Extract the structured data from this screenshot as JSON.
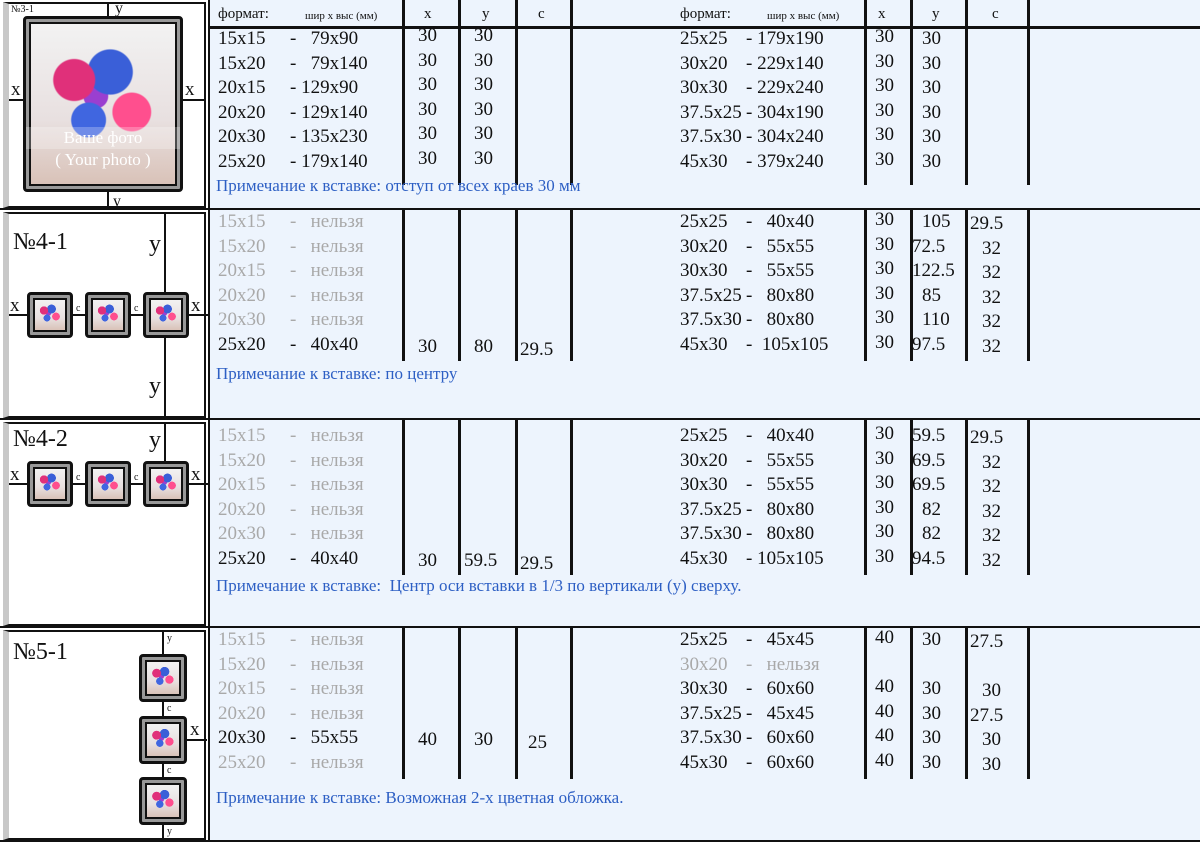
{
  "header": {
    "format": "формат:",
    "dims": "шир х выс (мм)",
    "x": "x",
    "y": "y",
    "c": "c"
  },
  "sections": [
    {
      "id": "№3-1",
      "left_rows": [
        {
          "fmt": "15x15",
          "size": "-   79x90",
          "x": "30",
          "y": "30",
          "c": "",
          "enabled": true
        },
        {
          "fmt": "15x20",
          "size": "-   79x140",
          "x": "30",
          "y": "30",
          "c": "",
          "enabled": true
        },
        {
          "fmt": "20x15",
          "size": "- 129x90",
          "x": "30",
          "y": "30",
          "c": "",
          "enabled": true
        },
        {
          "fmt": "20x20",
          "size": "- 129x140",
          "x": "30",
          "y": "30",
          "c": "",
          "enabled": true
        },
        {
          "fmt": "20x30",
          "size": "- 135x230",
          "x": "30",
          "y": "30",
          "c": "",
          "enabled": true
        },
        {
          "fmt": "25x20",
          "size": "- 179x140",
          "x": "30",
          "y": "30",
          "c": "",
          "enabled": true
        }
      ],
      "right_rows": [
        {
          "fmt": "25x25",
          "size": "- 179x190",
          "x": "30",
          "y": "30",
          "c": "",
          "enabled": true
        },
        {
          "fmt": "30x20",
          "size": "- 229x140",
          "x": "30",
          "y": "30",
          "c": "",
          "enabled": true
        },
        {
          "fmt": "30x30",
          "size": "- 229x240",
          "x": "30",
          "y": "30",
          "c": "",
          "enabled": true
        },
        {
          "fmt": "37.5x25",
          "size": "- 304x190",
          "x": "30",
          "y": "30",
          "c": "",
          "enabled": true
        },
        {
          "fmt": "37.5x30",
          "size": "- 304x240",
          "x": "30",
          "y": "30",
          "c": "",
          "enabled": true
        },
        {
          "fmt": "45x30",
          "size": "- 379x240",
          "x": "30",
          "y": "30",
          "c": "",
          "enabled": true
        }
      ],
      "note": "Примечание к вставке: отступ от всех краев 30 мм",
      "photo_caption": [
        "Ваше фото",
        "( Your photo )"
      ],
      "diagram_labels": {
        "x": "x",
        "y": "y",
        "c": "c"
      }
    },
    {
      "id": "№4-1",
      "left_rows": [
        {
          "fmt": "15x15",
          "size": "-   нельзя",
          "x": "",
          "y": "",
          "c": "",
          "enabled": false
        },
        {
          "fmt": "15x20",
          "size": "-   нельзя",
          "x": "",
          "y": "",
          "c": "",
          "enabled": false
        },
        {
          "fmt": "20x15",
          "size": "-   нельзя",
          "x": "",
          "y": "",
          "c": "",
          "enabled": false
        },
        {
          "fmt": "20x20",
          "size": "-   нельзя",
          "x": "",
          "y": "",
          "c": "",
          "enabled": false
        },
        {
          "fmt": "20x30",
          "size": "-   нельзя",
          "x": "",
          "y": "",
          "c": "",
          "enabled": false
        },
        {
          "fmt": "25x20",
          "size": "-   40x40",
          "x": "30",
          "y": "80",
          "c": "29.5",
          "enabled": true
        }
      ],
      "right_rows": [
        {
          "fmt": "25x25",
          "size": "-   40x40",
          "x": "30",
          "y": "105",
          "c": "29.5",
          "enabled": true
        },
        {
          "fmt": "30x20",
          "size": "-   55x55",
          "x": "30",
          "y": "72.5",
          "c": "32",
          "enabled": true
        },
        {
          "fmt": "30x30",
          "size": "-   55x55",
          "x": "30",
          "y": "122.5",
          "c": "32",
          "enabled": true
        },
        {
          "fmt": "37.5x25",
          "size": "-   80x80",
          "x": "30",
          "y": "85",
          "c": "32",
          "enabled": true
        },
        {
          "fmt": "37.5x30",
          "size": "-   80x80",
          "x": "30",
          "y": "110",
          "c": "32",
          "enabled": true
        },
        {
          "fmt": "45x30",
          "size": "-  105x105",
          "x": "30",
          "y": "97.5",
          "c": "32",
          "enabled": true
        }
      ],
      "note": "Примечание к вставке: по центру",
      "diagram_labels": {
        "x": "x",
        "y": "y",
        "c": "c"
      }
    },
    {
      "id": "№4-2",
      "left_rows": [
        {
          "fmt": "15x15",
          "size": "-   нельзя",
          "x": "",
          "y": "",
          "c": "",
          "enabled": false
        },
        {
          "fmt": "15x20",
          "size": "-   нельзя",
          "x": "",
          "y": "",
          "c": "",
          "enabled": false
        },
        {
          "fmt": "20x15",
          "size": "-   нельзя",
          "x": "",
          "y": "",
          "c": "",
          "enabled": false
        },
        {
          "fmt": "20x20",
          "size": "-   нельзя",
          "x": "",
          "y": "",
          "c": "",
          "enabled": false
        },
        {
          "fmt": "20x30",
          "size": "-   нельзя",
          "x": "",
          "y": "",
          "c": "",
          "enabled": false
        },
        {
          "fmt": "25x20",
          "size": "-   40x40",
          "x": "30",
          "y": "59.5",
          "c": "29.5",
          "enabled": true
        }
      ],
      "right_rows": [
        {
          "fmt": "25x25",
          "size": "-   40x40",
          "x": "30",
          "y": "59.5",
          "c": "29.5",
          "enabled": true
        },
        {
          "fmt": "30x20",
          "size": "-   55x55",
          "x": "30",
          "y": "69.5",
          "c": "32",
          "enabled": true
        },
        {
          "fmt": "30x30",
          "size": "-   55x55",
          "x": "30",
          "y": "69.5",
          "c": "32",
          "enabled": true
        },
        {
          "fmt": "37.5x25",
          "size": "-   80x80",
          "x": "30",
          "y": "82",
          "c": "32",
          "enabled": true
        },
        {
          "fmt": "37.5x30",
          "size": "-   80x80",
          "x": "30",
          "y": "82",
          "c": "32",
          "enabled": true
        },
        {
          "fmt": "45x30",
          "size": "- 105x105",
          "x": "30",
          "y": "94.5",
          "c": "32",
          "enabled": true
        }
      ],
      "note": "Примечание к вставке:  Центр оси вставки в 1/3 по вертикали (у) сверху.",
      "diagram_labels": {
        "x": "x",
        "y": "y",
        "c": "c"
      }
    },
    {
      "id": "№5-1",
      "left_rows": [
        {
          "fmt": "15x15",
          "size": "-   нельзя",
          "x": "",
          "y": "",
          "c": "",
          "enabled": false
        },
        {
          "fmt": "15x20",
          "size": "-   нельзя",
          "x": "",
          "y": "",
          "c": "",
          "enabled": false
        },
        {
          "fmt": "20x15",
          "size": "-   нельзя",
          "x": "",
          "y": "",
          "c": "",
          "enabled": false
        },
        {
          "fmt": "20x20",
          "size": "-   нельзя",
          "x": "",
          "y": "",
          "c": "",
          "enabled": false
        },
        {
          "fmt": "20x30",
          "size": "-   55x55",
          "x": "40",
          "y": "30",
          "c": "25",
          "enabled": true
        },
        {
          "fmt": "25x20",
          "size": "-   нельзя",
          "x": "",
          "y": "",
          "c": "",
          "enabled": false
        }
      ],
      "right_rows": [
        {
          "fmt": "25x25",
          "size": "-   45x45",
          "x": "40",
          "y": "30",
          "c": "27.5",
          "enabled": true
        },
        {
          "fmt": "30x20",
          "size": "-   нельзя",
          "x": "",
          "y": "",
          "c": "",
          "enabled": false
        },
        {
          "fmt": "30x30",
          "size": "-   60x60",
          "x": "40",
          "y": "30",
          "c": "30",
          "enabled": true
        },
        {
          "fmt": "37.5x25",
          "size": "-   45x45",
          "x": "40",
          "y": "30",
          "c": "27.5",
          "enabled": true
        },
        {
          "fmt": "37.5x30",
          "size": "-   60x60",
          "x": "40",
          "y": "30",
          "c": "30",
          "enabled": true
        },
        {
          "fmt": "45x30",
          "size": "-   60x60",
          "x": "40",
          "y": "30",
          "c": "30",
          "enabled": true
        }
      ],
      "note": "Примечание к вставке: Возможная 2-х цветная обложка.",
      "diagram_labels": {
        "x": "x",
        "y": "y",
        "c": "c"
      }
    }
  ],
  "colors": {
    "table_bg": "#edf4fd",
    "note": "#2d5fc4",
    "disabled": "#a9a9a9"
  }
}
